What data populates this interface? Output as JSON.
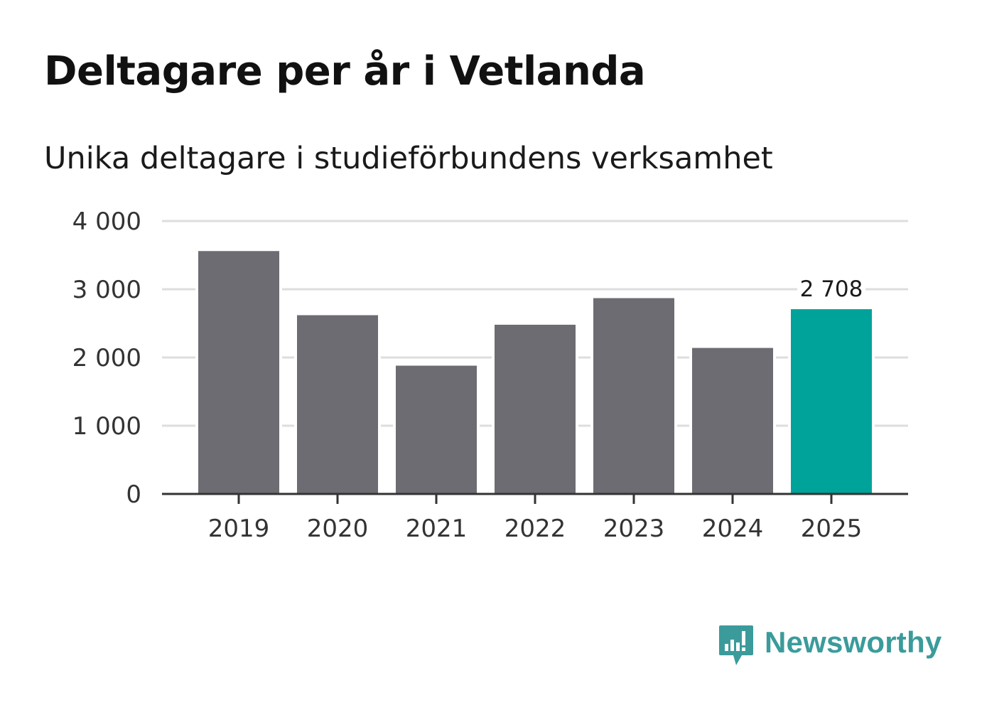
{
  "title": "Deltagare per år i Vetlanda",
  "subtitle": "Unika deltagare i studieförbundens verksamhet",
  "chart_data": {
    "type": "bar",
    "title": "Deltagare per år i Vetlanda",
    "subtitle": "Unika deltagare i studieförbundens verksamhet",
    "categories": [
      "2019",
      "2020",
      "2021",
      "2022",
      "2023",
      "2024",
      "2025"
    ],
    "values": [
      3560,
      2620,
      1880,
      2480,
      2870,
      2140,
      2708
    ],
    "yticks": [
      0,
      1000,
      2000,
      3000,
      4000
    ],
    "ytick_labels": [
      "0",
      "1 000",
      "2 000",
      "3 000",
      "4 000"
    ],
    "ylim": [
      0,
      4000
    ],
    "xlabel": "",
    "ylabel": "",
    "grid": true,
    "annotations": [
      {
        "category": "2025",
        "label": "2 708"
      }
    ],
    "colors": {
      "default_bar": "#6d6c72",
      "highlight_bar": "#00a39a",
      "grid": "#dedede",
      "axis": "#333333"
    },
    "highlight_index": 6
  },
  "brand": {
    "name": "Newsworthy",
    "color": "#3b9b9b",
    "icon": "newsworthy-logo-icon"
  }
}
